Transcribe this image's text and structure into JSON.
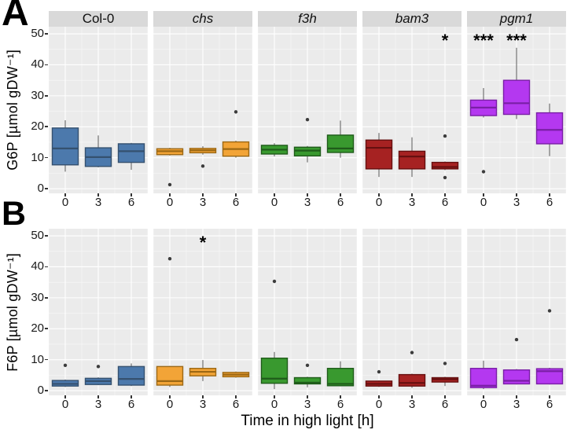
{
  "figure": {
    "panel_a_label": "A",
    "panel_b_label": "B",
    "x_axis_title": "Time in high light [h]"
  },
  "style": {
    "panel_bg": "#EBEBEB",
    "strip_bg": "#D9D9D9",
    "gridline": "#FFFFFF",
    "whisker": "#7E7E7E",
    "outlier": "#3C3C3C",
    "axis_text": "#1A1A1A",
    "sig_color": "#000000"
  },
  "chart_data": [
    {
      "type": "boxplot",
      "panel": "A",
      "ylabel": "G6P [µmol gDW⁻¹]",
      "ylim": [
        -1.5,
        52.3
      ],
      "yticks": [
        0,
        10,
        20,
        30,
        40,
        50
      ],
      "categories": [
        "0",
        "3",
        "6"
      ],
      "show_strips": true,
      "facets": [
        {
          "label": "Col-0",
          "italic": false,
          "fill": "#4C79AC",
          "stroke": "#35516F",
          "boxes": [
            {
              "low": 5.5,
              "q1": 7.7,
              "median": 13.0,
              "q3": 19.6,
              "high": 22.1,
              "outliers": []
            },
            {
              "low": 6.9,
              "q1": 7.2,
              "median": 10.2,
              "q3": 13.2,
              "high": 17.2,
              "outliers": []
            },
            {
              "low": 6.1,
              "q1": 8.5,
              "median": 12.1,
              "q3": 14.5,
              "high": 14.8,
              "outliers": []
            }
          ],
          "sig": [
            "",
            "",
            ""
          ]
        },
        {
          "label": "chs",
          "italic": true,
          "fill": "#F2A437",
          "stroke": "#9C6814",
          "boxes": [
            {
              "low": 10.7,
              "q1": 11.0,
              "median": 12.1,
              "q3": 12.9,
              "high": 13.2,
              "outliers": [
                1.3
              ]
            },
            {
              "low": 11.0,
              "q1": 11.6,
              "median": 12.4,
              "q3": 13.0,
              "high": 13.7,
              "outliers": [
                7.3
              ]
            },
            {
              "low": 10.0,
              "q1": 10.5,
              "median": 12.8,
              "q3": 15.1,
              "high": 15.5,
              "outliers": [
                24.8
              ]
            }
          ],
          "sig": [
            "",
            "",
            ""
          ]
        },
        {
          "label": "f3h",
          "italic": true,
          "fill": "#39992F",
          "stroke": "#1F5C1A",
          "boxes": [
            {
              "low": 10.4,
              "q1": 11.2,
              "median": 12.6,
              "q3": 14.0,
              "high": 14.7,
              "outliers": []
            },
            {
              "low": 8.5,
              "q1": 10.6,
              "median": 12.3,
              "q3": 13.4,
              "high": 13.8,
              "outliers": [
                22.3
              ]
            },
            {
              "low": 10.0,
              "q1": 11.7,
              "median": 13.0,
              "q3": 17.3,
              "high": 22.0,
              "outliers": []
            }
          ],
          "sig": [
            "",
            "",
            ""
          ]
        },
        {
          "label": "bam3",
          "italic": true,
          "fill": "#A62222",
          "stroke": "#661010",
          "boxes": [
            {
              "low": 3.8,
              "q1": 6.4,
              "median": 13.2,
              "q3": 15.7,
              "high": 18.0,
              "outliers": []
            },
            {
              "low": 3.8,
              "q1": 6.4,
              "median": 10.4,
              "q3": 12.1,
              "high": 16.6,
              "outliers": []
            },
            {
              "low": 6.0,
              "q1": 6.4,
              "median": 7.0,
              "q3": 8.5,
              "high": 8.8,
              "outliers": [
                17.0,
                3.6
              ]
            }
          ],
          "sig": [
            "",
            "",
            "*"
          ]
        },
        {
          "label": "pgm1",
          "italic": true,
          "fill": "#B438F0",
          "stroke": "#7A1FA6",
          "boxes": [
            {
              "low": 23.0,
              "q1": 23.6,
              "median": 26.2,
              "q3": 28.6,
              "high": 32.5,
              "outliers": [
                5.5
              ]
            },
            {
              "low": 22.5,
              "q1": 24.0,
              "median": 27.6,
              "q3": 35.0,
              "high": 45.5,
              "outliers": []
            },
            {
              "low": 10.5,
              "q1": 14.5,
              "median": 19.0,
              "q3": 24.5,
              "high": 27.5,
              "outliers": []
            }
          ],
          "sig": [
            "***",
            "***",
            ""
          ]
        }
      ]
    },
    {
      "type": "boxplot",
      "panel": "B",
      "ylabel": "F6P [µmol gDW⁻¹]",
      "ylim": [
        -1.5,
        52.3
      ],
      "yticks": [
        0,
        10,
        20,
        30,
        40,
        50
      ],
      "categories": [
        "0",
        "3",
        "6"
      ],
      "show_strips": false,
      "facets": [
        {
          "label": "Col-0",
          "italic": false,
          "fill": "#4C79AC",
          "stroke": "#35516F",
          "boxes": [
            {
              "low": 1.2,
              "q1": 1.5,
              "median": 2.2,
              "q3": 3.3,
              "high": 3.6,
              "outliers": [
                8.2
              ]
            },
            {
              "low": 1.8,
              "q1": 2.0,
              "median": 3.1,
              "q3": 4.0,
              "high": 4.3,
              "outliers": [
                7.8
              ]
            },
            {
              "low": 1.5,
              "q1": 1.8,
              "median": 3.8,
              "q3": 7.8,
              "high": 8.8,
              "outliers": []
            }
          ],
          "sig": [
            "",
            "",
            ""
          ]
        },
        {
          "label": "chs",
          "italic": true,
          "fill": "#F2A437",
          "stroke": "#9C6814",
          "boxes": [
            {
              "low": 1.2,
              "q1": 1.8,
              "median": 3.1,
              "q3": 7.8,
              "high": 8.0,
              "outliers": [
                42.6
              ]
            },
            {
              "low": 3.1,
              "q1": 4.8,
              "median": 6.1,
              "q3": 7.2,
              "high": 9.9,
              "outliers": []
            },
            {
              "low": 4.2,
              "q1": 4.5,
              "median": 5.2,
              "q3": 5.9,
              "high": 6.2,
              "outliers": []
            }
          ],
          "sig": [
            "",
            "*",
            ""
          ]
        },
        {
          "label": "f3h",
          "italic": true,
          "fill": "#39992F",
          "stroke": "#1F5C1A",
          "boxes": [
            {
              "low": 0.5,
              "q1": 2.4,
              "median": 3.9,
              "q3": 10.5,
              "high": 12.5,
              "outliers": [
                35.3
              ]
            },
            {
              "low": 1.1,
              "q1": 2.2,
              "median": 2.6,
              "q3": 4.2,
              "high": 4.5,
              "outliers": [
                8.2
              ]
            },
            {
              "low": 1.4,
              "q1": 1.6,
              "median": 2.2,
              "q3": 7.2,
              "high": 9.5,
              "outliers": []
            }
          ],
          "sig": [
            "",
            "",
            ""
          ]
        },
        {
          "label": "bam3",
          "italic": true,
          "fill": "#A62222",
          "stroke": "#661010",
          "boxes": [
            {
              "low": 1.2,
              "q1": 1.5,
              "median": 2.2,
              "q3": 3.1,
              "high": 3.3,
              "outliers": [
                6.1
              ]
            },
            {
              "low": 0.9,
              "q1": 1.5,
              "median": 2.5,
              "q3": 5.2,
              "high": 5.5,
              "outliers": [
                12.3
              ]
            },
            {
              "low": 1.5,
              "q1": 2.8,
              "median": 3.7,
              "q3": 4.2,
              "high": 4.5,
              "outliers": [
                8.8
              ]
            }
          ],
          "sig": [
            "",
            "",
            ""
          ]
        },
        {
          "label": "pgm1",
          "italic": true,
          "fill": "#B438F0",
          "stroke": "#7A1FA6",
          "boxes": [
            {
              "low": 0.5,
              "q1": 1.0,
              "median": 1.6,
              "q3": 7.2,
              "high": 9.7,
              "outliers": []
            },
            {
              "low": 2.0,
              "q1": 2.2,
              "median": 3.2,
              "q3": 6.7,
              "high": 7.0,
              "outliers": [
                16.5
              ]
            },
            {
              "low": 2.0,
              "q1": 2.2,
              "median": 6.3,
              "q3": 7.1,
              "high": 7.4,
              "outliers": [
                25.8
              ]
            }
          ],
          "sig": [
            "",
            "",
            ""
          ]
        }
      ]
    }
  ]
}
